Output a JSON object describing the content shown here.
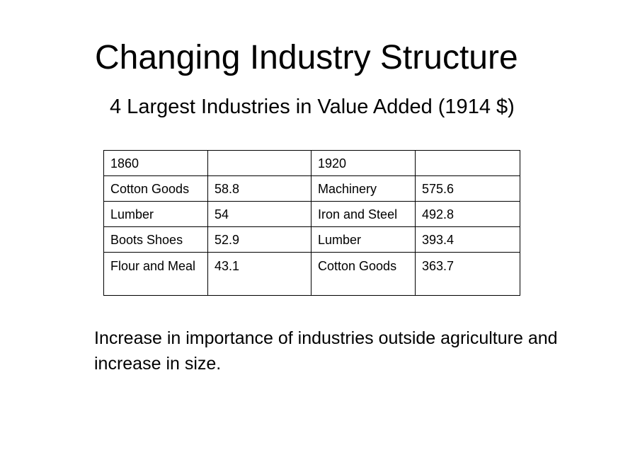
{
  "slide": {
    "title": "Changing Industry Structure",
    "subtitle": "4 Largest Industries in Value Added (1914 $)",
    "body": "Increase in importance of industries outside agriculture and increase in size."
  },
  "table": {
    "header": [
      "1860",
      "",
      "1920",
      ""
    ],
    "rows": [
      [
        "Cotton Goods",
        "58.8",
        "Machinery",
        "575.6"
      ],
      [
        "Lumber",
        "54",
        "Iron and Steel",
        "492.8"
      ],
      [
        "Boots Shoes",
        "52.9",
        "Lumber",
        "393.4"
      ],
      [
        "Flour and Meal",
        "43.1",
        "Cotton Goods",
        "363.7"
      ]
    ]
  }
}
